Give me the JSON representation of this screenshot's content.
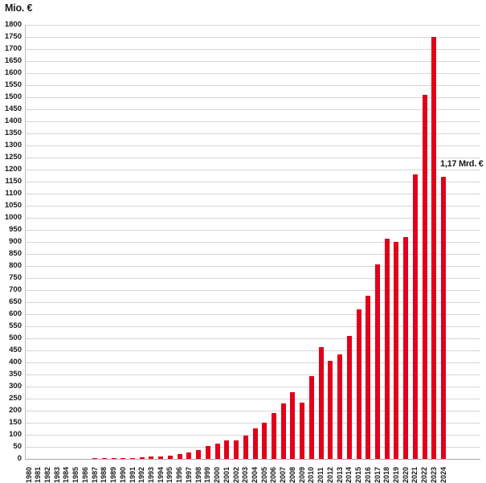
{
  "chart_data": {
    "type": "bar",
    "title": "",
    "ylabel": "Mio. €",
    "xlabel": "",
    "ylim": [
      0,
      1800
    ],
    "ytick_step": 50,
    "grid": true,
    "legend": null,
    "bar_color": "#e2001a",
    "categories": [
      "1980",
      "1981",
      "1982",
      "1983",
      "1984",
      "1985",
      "1986",
      "1987",
      "1988",
      "1989",
      "1990",
      "1991",
      "1992",
      "1993",
      "1994",
      "1995",
      "1996",
      "1997",
      "1998",
      "1999",
      "2000",
      "2001",
      "2002",
      "2003",
      "2004",
      "2005",
      "2006",
      "2007",
      "2008",
      "2009",
      "2010",
      "2011",
      "2012",
      "2013",
      "2014",
      "2015",
      "2016",
      "2017",
      "2018",
      "2019",
      "2020",
      "2021",
      "2022",
      "2023",
      "2024"
    ],
    "values": [
      0.3,
      0.5,
      0.5,
      0.8,
      1,
      1,
      1.5,
      2,
      3,
      3,
      4,
      5,
      8,
      9,
      10,
      15,
      20,
      26,
      37,
      53,
      64,
      77,
      77,
      97,
      128,
      150,
      189,
      231,
      277,
      234,
      344,
      463,
      407,
      433,
      510,
      620,
      677,
      807,
      913,
      900,
      920,
      1180,
      1510,
      1750,
      1170
    ],
    "annotations": [
      {
        "x": "2024",
        "text": "1,17 Mrd. €"
      }
    ]
  },
  "yticks": [
    "0",
    "50",
    "100",
    "150",
    "200",
    "250",
    "300",
    "350",
    "400",
    "450",
    "500",
    "550",
    "600",
    "650",
    "700",
    "750",
    "800",
    "850",
    "900",
    "950",
    "1000",
    "1050",
    "1100",
    "1150",
    "1200",
    "1250",
    "1300",
    "1350",
    "1400",
    "1450",
    "1500",
    "1550",
    "1600",
    "1650",
    "1700",
    "1750",
    "1800"
  ]
}
